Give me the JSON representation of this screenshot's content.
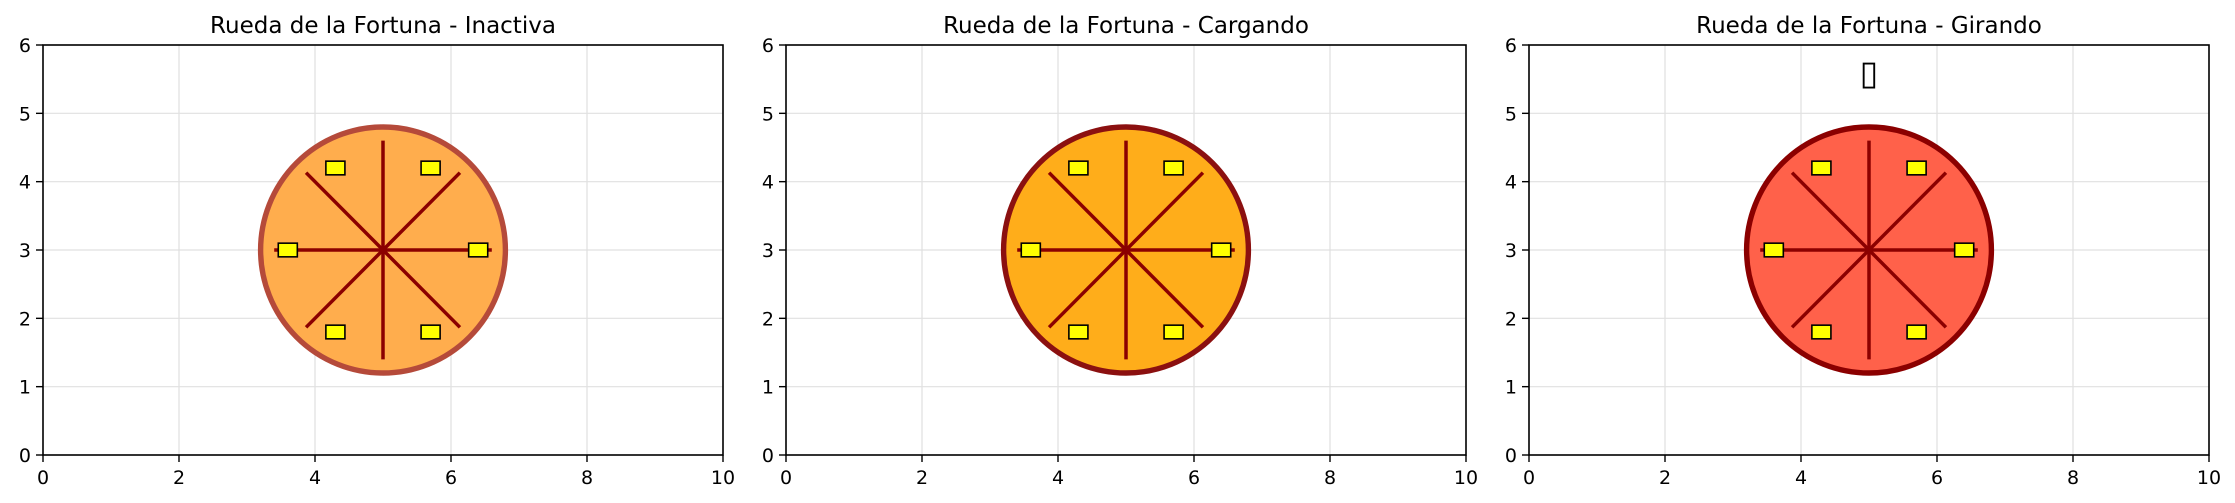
{
  "chart_data": [
    {
      "type": "diagram",
      "title": "Rueda de la Fortuna - Inactiva",
      "xlim": [
        0,
        10
      ],
      "ylim": [
        0,
        6
      ],
      "xticks": [
        0,
        2,
        4,
        6,
        8,
        10
      ],
      "yticks": [
        0,
        1,
        2,
        3,
        4,
        5,
        6
      ],
      "grid": true,
      "wheel": {
        "center": [
          5,
          3
        ],
        "radius": 1.8,
        "spoke_length": 1.6,
        "spoke_angles_deg": [
          0,
          45,
          90,
          135,
          180,
          225,
          270,
          315
        ],
        "fill_color": "#ffad4d",
        "edge_color": "#b54a3a",
        "edge_width": 3
      },
      "cabins": [
        {
          "x": 3.6,
          "y": 3.0
        },
        {
          "x": 4.3,
          "y": 4.2
        },
        {
          "x": 5.7,
          "y": 4.2
        },
        {
          "x": 6.4,
          "y": 3.0
        },
        {
          "x": 5.7,
          "y": 1.8
        },
        {
          "x": 4.3,
          "y": 1.8
        }
      ],
      "cabin_color": "#ffff00",
      "annotation": ""
    },
    {
      "type": "diagram",
      "title": "Rueda de la Fortuna - Cargando",
      "xlim": [
        0,
        10
      ],
      "ylim": [
        0,
        6
      ],
      "xticks": [
        0,
        2,
        4,
        6,
        8,
        10
      ],
      "yticks": [
        0,
        1,
        2,
        3,
        4,
        5,
        6
      ],
      "grid": true,
      "wheel": {
        "center": [
          5,
          3
        ],
        "radius": 1.8,
        "spoke_length": 1.6,
        "spoke_angles_deg": [
          0,
          45,
          90,
          135,
          180,
          225,
          270,
          315
        ],
        "fill_color": "#ffad1a",
        "edge_color": "#8b1010",
        "edge_width": 3
      },
      "cabins": [
        {
          "x": 3.6,
          "y": 3.0
        },
        {
          "x": 4.3,
          "y": 4.2
        },
        {
          "x": 5.7,
          "y": 4.2
        },
        {
          "x": 6.4,
          "y": 3.0
        },
        {
          "x": 5.7,
          "y": 1.8
        },
        {
          "x": 4.3,
          "y": 1.8
        }
      ],
      "cabin_color": "#ffff00",
      "annotation": ""
    },
    {
      "type": "diagram",
      "title": "Rueda de la Fortuna - Girando",
      "xlim": [
        0,
        10
      ],
      "ylim": [
        0,
        6
      ],
      "xticks": [
        0,
        2,
        4,
        6,
        8,
        10
      ],
      "yticks": [
        0,
        1,
        2,
        3,
        4,
        5,
        6
      ],
      "grid": true,
      "wheel": {
        "center": [
          5,
          3
        ],
        "radius": 1.8,
        "spoke_length": 1.6,
        "spoke_angles_deg": [
          0,
          45,
          90,
          135,
          180,
          225,
          270,
          315
        ],
        "fill_color": "#ff614a",
        "edge_color": "#8b0000",
        "edge_width": 3
      },
      "cabins": [
        {
          "x": 3.6,
          "y": 3.0
        },
        {
          "x": 4.3,
          "y": 4.2
        },
        {
          "x": 5.7,
          "y": 4.2
        },
        {
          "x": 6.4,
          "y": 3.0
        },
        {
          "x": 5.7,
          "y": 1.8
        },
        {
          "x": 4.3,
          "y": 1.8
        }
      ],
      "cabin_color": "#ffff00",
      "annotation": "▯",
      "annotation_pos": [
        5,
        5.6
      ]
    }
  ],
  "style": {
    "spoke_color": "#8b0000",
    "grid_color": "#e0e0e0",
    "axis_color": "#000000"
  }
}
